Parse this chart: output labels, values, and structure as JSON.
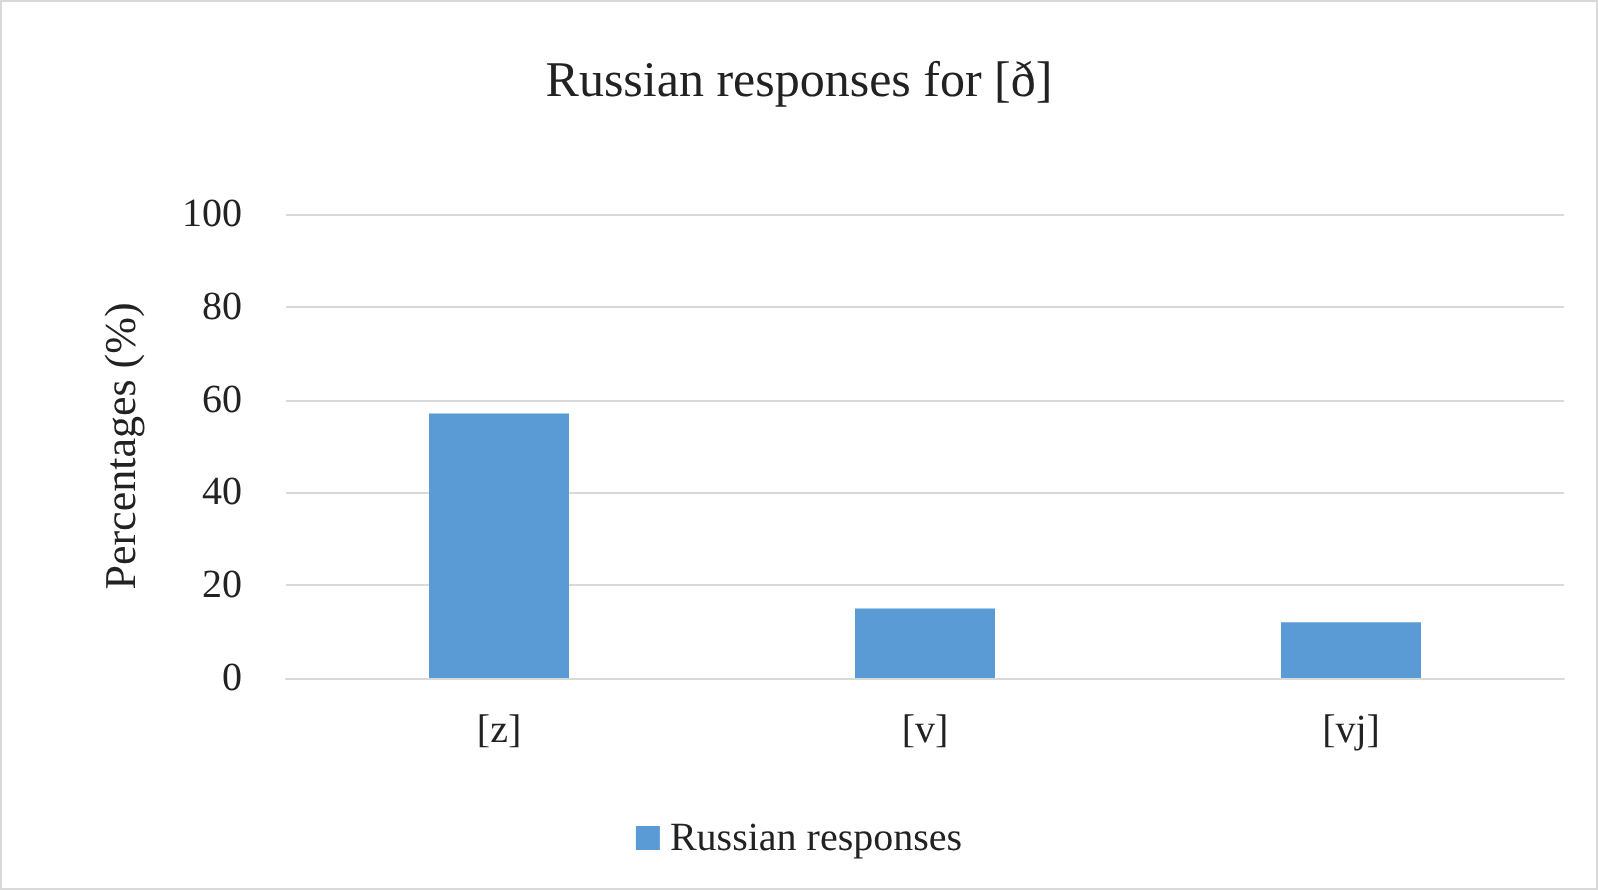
{
  "chart_data": {
    "type": "bar",
    "title": "Russian responses for [ð]",
    "ylabel": "Percentages (%)",
    "categories": [
      "[z]",
      "[v]",
      "[vj]"
    ],
    "series": [
      {
        "name": "Russian responses",
        "color": "#5b9bd5",
        "values": [
          57,
          15,
          12
        ]
      }
    ],
    "ylim": [
      0,
      100
    ],
    "yticks": [
      0,
      20,
      40,
      60,
      80,
      100
    ],
    "grid": "y",
    "legend": "bottom"
  }
}
